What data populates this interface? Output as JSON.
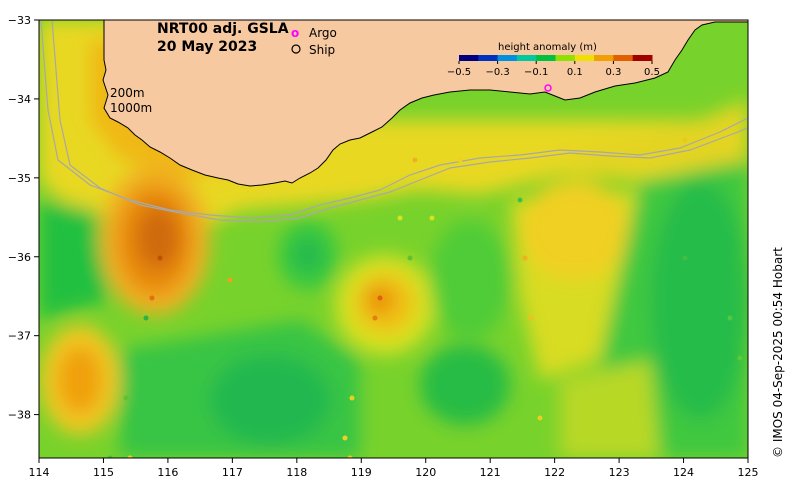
{
  "title": {
    "product": "NRT00 adj. GSLA",
    "date": "20 May 2023"
  },
  "legend": {
    "argo_label": "Argo",
    "argo_symbol": "o",
    "ship_label": "Ship"
  },
  "contour_labels": [
    "200m",
    "1000m"
  ],
  "colorbar": {
    "title": "height anomaly (m)",
    "tick_labels": [
      "−0.5",
      "−0.3",
      "−0.1",
      "0.1",
      "0.3",
      "0.5"
    ],
    "tick_values": [
      -0.5,
      -0.3,
      -0.1,
      0.1,
      0.3,
      0.5
    ],
    "range": [
      -0.5,
      0.5
    ],
    "colors": [
      "#00007f",
      "#0030c0",
      "#0090e0",
      "#00c8a0",
      "#00c040",
      "#90e000",
      "#f0e000",
      "#f0a000",
      "#e06000",
      "#a00000"
    ]
  },
  "axes": {
    "x_ticks": [
      "114",
      "115",
      "116",
      "117",
      "118",
      "119",
      "120",
      "121",
      "122",
      "123",
      "124",
      "125"
    ],
    "x_values": [
      114,
      115,
      116,
      117,
      118,
      119,
      120,
      121,
      122,
      123,
      124,
      125
    ],
    "y_ticks": [
      "−33",
      "−34",
      "−35",
      "−36",
      "−37",
      "−38"
    ],
    "y_values": [
      -33,
      -34,
      -35,
      -36,
      -37,
      -38
    ],
    "lon_range": [
      114,
      125
    ],
    "lat_range": [
      -38.55,
      -33
    ]
  },
  "credit": "© IMOS 04-Sep-2025 00:54 Hobart",
  "colors": {
    "land": "#f7c9a0",
    "ocean_base": "#7ad62a",
    "contour": "#a8a8a8",
    "argo": "#ff00ff"
  }
}
